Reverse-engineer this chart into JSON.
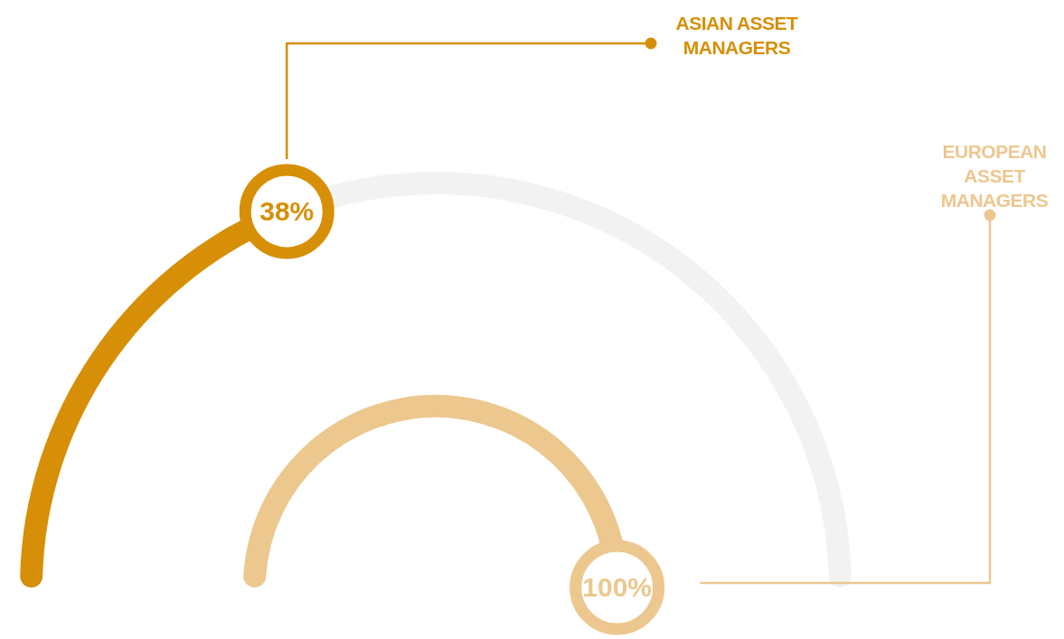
{
  "chart_data": {
    "type": "other",
    "categories": [
      "ASIAN ASSET MANAGERS",
      "EUROPEAN ASSET MANAGERS"
    ],
    "values": [
      38,
      100
    ],
    "colors": [
      "#d68f06",
      "#ecc78e"
    ],
    "value_labels": [
      "38%",
      "100%"
    ]
  }
}
